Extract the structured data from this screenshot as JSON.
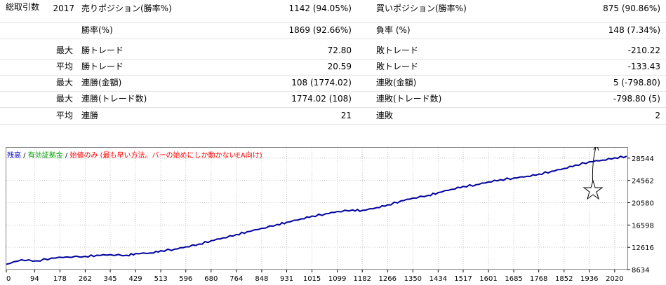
{
  "stats": {
    "rows": [
      {
        "label": "総取引数",
        "num": "2017",
        "sub": "",
        "name1": "売りポジション(勝率%)",
        "val1": "1142 (94.05%)",
        "name2": "買いポジション(勝率%)",
        "val2": "875 (90.86%)"
      },
      {
        "label": "",
        "num": "",
        "sub": "",
        "name1": "勝率(%)",
        "val1": "1869 (92.66%)",
        "name2": "負率 (%)",
        "val2": "148 (7.34%)"
      },
      {
        "label": "",
        "num": "",
        "sub": "最大",
        "name1": "勝トレード",
        "val1": "72.80",
        "name2": "敗トレード",
        "val2": "-210.22"
      },
      {
        "label": "",
        "num": "",
        "sub": "平均",
        "name1": "勝トレード",
        "val1": "20.59",
        "name2": "敗トレード",
        "val2": "-133.43"
      },
      {
        "label": "",
        "num": "",
        "sub": "最大",
        "name1": "連勝(金額)",
        "val1": "108 (1774.02)",
        "name2": "連敗(金額)",
        "val2": "5 (-798.80)"
      },
      {
        "label": "",
        "num": "",
        "sub": "最大",
        "name1": "連勝(トレード数)",
        "val1": "1774.02 (108)",
        "name2": "連敗(トレード数)",
        "val2": "-798.80 (5)"
      },
      {
        "label": "",
        "num": "",
        "sub": "平均",
        "name1": "連勝",
        "val1": "21",
        "name2": "連敗",
        "val2": "2"
      }
    ]
  },
  "legend": {
    "balance": "残高",
    "sep1": " / ",
    "equity": "有効証拠金",
    "sep2": " / ",
    "note": "始値のみ (最も早い方法。バーの始めにしか動かないEA向け)",
    "colors": {
      "balance": "#0000c8",
      "equity": "#00a000",
      "note": "#ff0000",
      "sep": "#000000"
    }
  },
  "chart_data": {
    "type": "line",
    "series": [
      {
        "line_color": "#00009c",
        "x": [
          0,
          50,
          100,
          150,
          200,
          262,
          300,
          345,
          400,
          429,
          480,
          513,
          560,
          596,
          640,
          680,
          720,
          764,
          800,
          848,
          900,
          931,
          980,
          1015,
          1060,
          1099,
          1150,
          1182,
          1230,
          1266,
          1310,
          1350,
          1400,
          1434,
          1480,
          1517,
          1560,
          1601,
          1640,
          1685,
          1730,
          1768,
          1810,
          1852,
          1890,
          1936,
          1980,
          2020,
          2060
        ],
        "y": [
          9600,
          10400,
          10200,
          10700,
          10900,
          11000,
          11200,
          11300,
          11200,
          11500,
          11600,
          12000,
          12300,
          12700,
          13200,
          13800,
          14300,
          14900,
          15400,
          16000,
          16700,
          17100,
          17700,
          18200,
          18600,
          19000,
          19300,
          19200,
          19700,
          20200,
          20900,
          21400,
          21900,
          22400,
          23000,
          23500,
          23800,
          24300,
          24700,
          25000,
          25300,
          25700,
          26200,
          26700,
          27300,
          27900,
          28200,
          28600,
          28900
        ]
      }
    ],
    "x_ticks": [
      "0",
      "94",
      "178",
      "262",
      "345",
      "429",
      "513",
      "596",
      "680",
      "764",
      "848",
      "931",
      "1015",
      "1099",
      "1182",
      "1266",
      "1350",
      "1434",
      "1517",
      "1601",
      "1685",
      "1768",
      "1852",
      "1936",
      "2020"
    ],
    "y_ticks": [
      "8634",
      "12616",
      "16598",
      "20580",
      "24562",
      "28544"
    ],
    "ylim": [
      8634,
      30400
    ],
    "xlim": [
      0,
      2060
    ]
  }
}
